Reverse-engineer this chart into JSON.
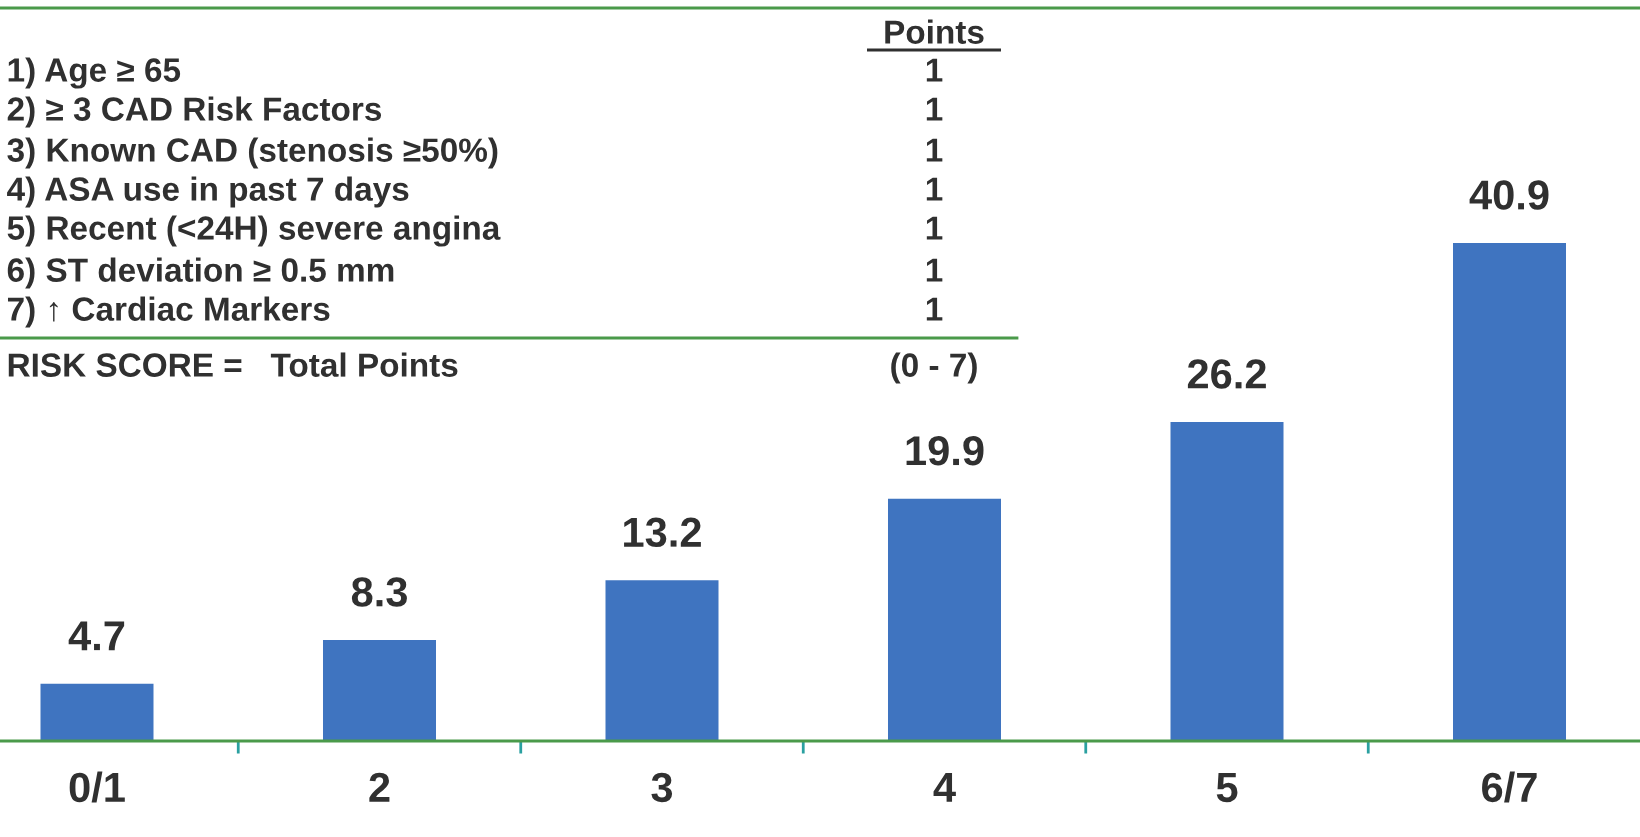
{
  "chart_data": {
    "type": "bar",
    "categories": [
      "0/1",
      "2",
      "3",
      "4",
      "5",
      "6/7"
    ],
    "values": [
      4.7,
      8.3,
      13.2,
      19.9,
      26.2,
      40.9
    ],
    "color": "#3f74c0",
    "data_labels": true,
    "grid": false,
    "annotations": [
      "Points",
      "1) Age ≥ 65",
      "1",
      "2) ≥ 3 CAD Risk Factors",
      "1",
      "3) Known CAD (stenosis ≥50%)",
      "1",
      "4) ASA use in past 7 days",
      "1",
      "5) Recent (<24H) severe angina",
      "1",
      "6) ST deviation ≥ 0.5 mm",
      "1",
      "7) ↑ Cardiac Markers",
      "1",
      "RISK SCORE =   Total Points",
      "(0 - 7)"
    ]
  }
}
